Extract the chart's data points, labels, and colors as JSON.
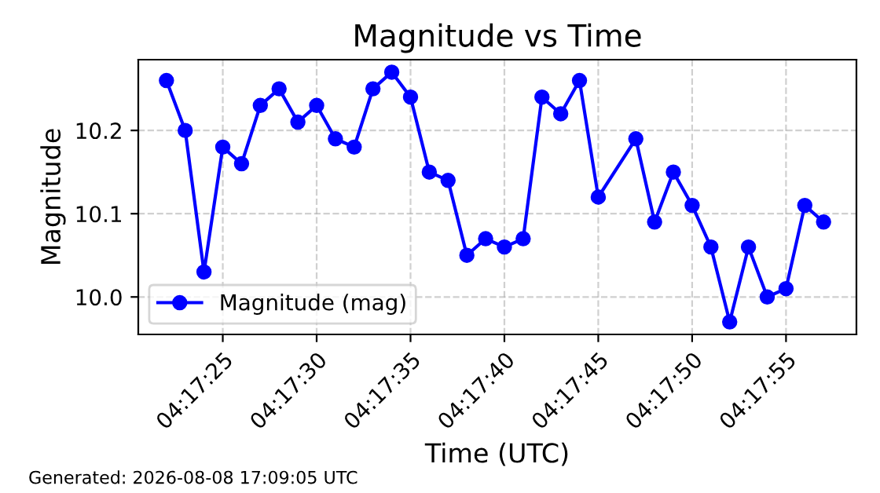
{
  "chart_data": {
    "type": "line",
    "title": "Magnitude vs Time",
    "xlabel": "Time (UTC)",
    "ylabel": "Magnitude",
    "x": [
      4.2894444,
      4.2897222,
      4.29,
      4.2902778,
      4.2905556,
      4.2908333,
      4.2911111,
      4.2913889,
      4.2916667,
      4.2919444,
      4.2922222,
      4.2925,
      4.2927778,
      4.2930556,
      4.2933333,
      4.2936111,
      4.2938889,
      4.2941667,
      4.2944444,
      4.2947222,
      4.295,
      4.2952778,
      4.2955556,
      4.2958333,
      4.2963889,
      4.2966667,
      4.2969444,
      4.2972222,
      4.2975,
      4.2977778,
      4.2980556,
      4.2983333,
      4.2986111,
      4.2988889,
      4.2991667
    ],
    "series": [
      {
        "name": "Magnitude (mag)",
        "color": "#0000ff",
        "values": [
          10.26,
          10.2,
          10.03,
          10.18,
          10.16,
          10.23,
          10.25,
          10.21,
          10.23,
          10.19,
          10.18,
          10.25,
          10.27,
          10.24,
          10.15,
          10.14,
          10.05,
          10.07,
          10.06,
          10.07,
          10.24,
          10.22,
          10.26,
          10.12,
          10.19,
          10.09,
          10.15,
          10.11,
          10.06,
          9.97,
          10.06,
          10.0,
          10.01,
          10.11,
          10.09
        ]
      }
    ],
    "xlim": [
      4.2890278,
      4.2996528
    ],
    "xticks": [
      {
        "value": 4.2902778,
        "label": "04:17:25"
      },
      {
        "value": 4.2916667,
        "label": "04:17:30"
      },
      {
        "value": 4.2930556,
        "label": "04:17:35"
      },
      {
        "value": 4.2944444,
        "label": "04:17:40"
      },
      {
        "value": 4.2958333,
        "label": "04:17:45"
      },
      {
        "value": 4.2972222,
        "label": "04:17:50"
      },
      {
        "value": 4.2986111,
        "label": "04:17:55"
      }
    ],
    "ylim": [
      9.955,
      10.285
    ],
    "yticks": [
      {
        "value": 10.0,
        "label": "10.0"
      },
      {
        "value": 10.1,
        "label": "10.1"
      },
      {
        "value": 10.2,
        "label": "10.2"
      }
    ],
    "grid": true,
    "legend": "bottom left",
    "marker": "circle",
    "line_style": "solid",
    "annotations": [
      "Generated: 2026-08-08 17:09:05 UTC"
    ]
  }
}
